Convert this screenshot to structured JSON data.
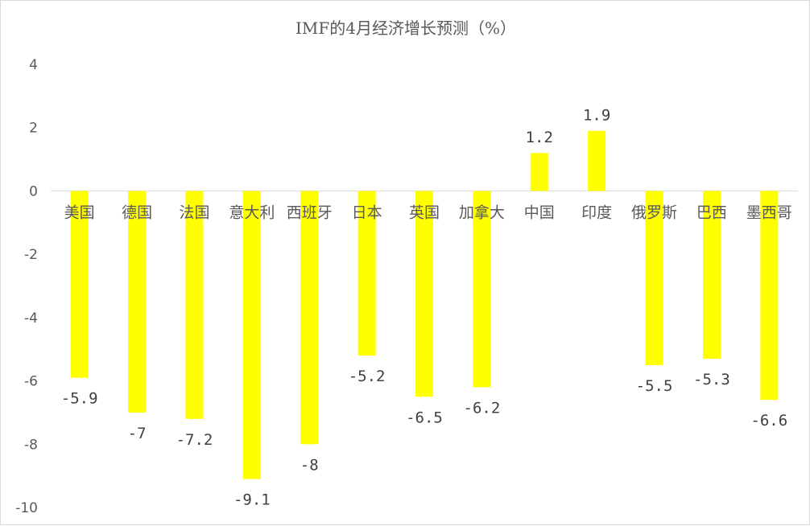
{
  "chart_data": {
    "type": "bar",
    "title": "IMF的4月经济增长预测（%）",
    "categories": [
      "美国",
      "德国",
      "法国",
      "意大利",
      "西班牙",
      "日本",
      "英国",
      "加拿大",
      "中国",
      "印度",
      "俄罗斯",
      "巴西",
      "墨西哥"
    ],
    "values": [
      -5.9,
      -7,
      -7.2,
      -9.1,
      -8,
      -5.2,
      -6.5,
      -6.2,
      1.2,
      1.9,
      -5.5,
      -5.3,
      -6.6
    ],
    "data_labels": [
      "-5.9",
      "-7",
      "-7.2",
      "-9.1",
      "-8",
      "-5.2",
      "-6.5",
      "-6.2",
      "1.2",
      "1.9",
      "-5.5",
      "-5.3",
      "-6.6"
    ],
    "ylim": [
      -10,
      4
    ],
    "yticks": [
      4,
      2,
      0,
      -2,
      -4,
      -6,
      -8,
      -10
    ],
    "ytick_labels": [
      "4",
      "2",
      "0",
      "-2",
      "-4",
      "-6",
      "-8",
      "-10"
    ],
    "bar_color": "#ffff00",
    "grid": false,
    "legend": "none"
  }
}
